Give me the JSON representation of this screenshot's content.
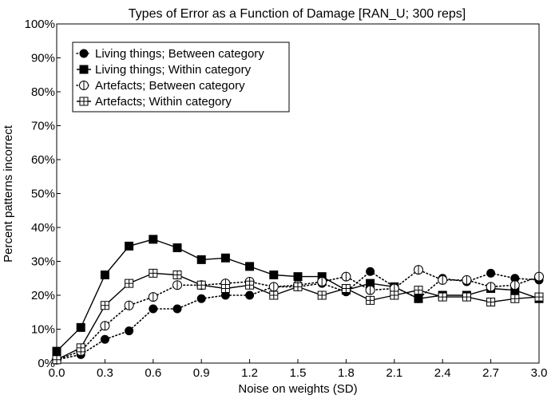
{
  "chart_data": {
    "type": "line",
    "title": "Types of Error as a Function of Damage [RAN_U; 300 reps]",
    "xlabel": "Noise on weights (SD)",
    "ylabel": "Percent patterns incorrect",
    "xlim": [
      0.0,
      3.0
    ],
    "ylim": [
      0,
      100
    ],
    "x_ticks": [
      "0.0",
      "0.3",
      "0.6",
      "0.9",
      "1.2",
      "1.5",
      "1.8",
      "2.1",
      "2.4",
      "2.7",
      "3.0"
    ],
    "y_ticks": [
      "0%",
      "10%",
      "20%",
      "30%",
      "40%",
      "50%",
      "60%",
      "70%",
      "80%",
      "90%",
      "100%"
    ],
    "grid": false,
    "legend_position": "top-left",
    "x": [
      0.0,
      0.15,
      0.3,
      0.45,
      0.6,
      0.75,
      0.9,
      1.05,
      1.2,
      1.35,
      1.5,
      1.65,
      1.8,
      1.95,
      2.1,
      2.25,
      2.4,
      2.55,
      2.7,
      2.85,
      3.0
    ],
    "series": [
      {
        "name": "Living things; Between category",
        "marker": "filled-circle",
        "line": "dotted",
        "values": [
          1.0,
          2.5,
          7.0,
          9.5,
          16.0,
          16.0,
          19.0,
          20.0,
          20.0,
          22.5,
          22.5,
          23.5,
          21.0,
          27.0,
          22.5,
          19.0,
          25.0,
          24.0,
          26.5,
          25.0,
          24.5
        ]
      },
      {
        "name": "Living things; Within category",
        "marker": "filled-square",
        "line": "solid",
        "values": [
          3.5,
          10.5,
          26.0,
          34.5,
          36.5,
          34.0,
          30.5,
          31.0,
          28.5,
          26.0,
          25.5,
          25.5,
          21.5,
          23.5,
          22.5,
          19.0,
          20.0,
          20.0,
          22.0,
          21.5,
          19.0
        ]
      },
      {
        "name": "Artefacts; Between category",
        "marker": "open-circle",
        "line": "dotted",
        "values": [
          1.0,
          3.5,
          11.0,
          17.0,
          19.5,
          23.0,
          23.0,
          23.5,
          24.0,
          22.5,
          23.0,
          24.0,
          25.5,
          21.5,
          22.0,
          27.5,
          24.5,
          24.5,
          22.5,
          23.0,
          25.5
        ]
      },
      {
        "name": "Artefacts; Within category",
        "marker": "open-square",
        "line": "solid",
        "values": [
          1.0,
          4.5,
          17.0,
          23.5,
          26.5,
          26.0,
          23.0,
          22.0,
          23.0,
          20.0,
          22.5,
          20.0,
          22.0,
          18.5,
          20.0,
          21.5,
          19.5,
          19.5,
          18.0,
          19.0,
          19.5
        ]
      }
    ]
  }
}
